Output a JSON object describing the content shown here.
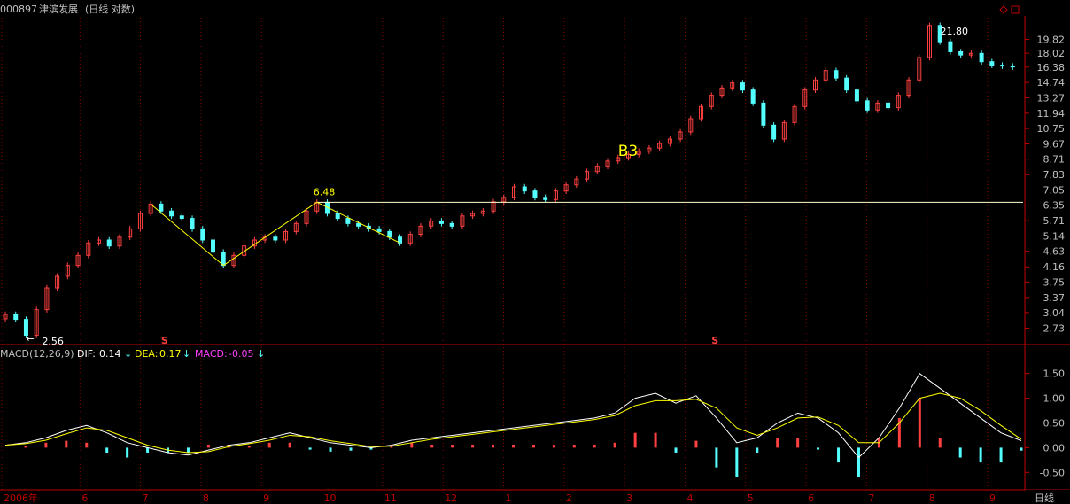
{
  "header": {
    "code": "000897",
    "name": "津滨发展",
    "period_label": "(日线 对数)"
  },
  "colors": {
    "up": "#ff4040",
    "down": "#54ffff",
    "axis": "#c00000",
    "grid": "#8b0000",
    "text": "#c0c0c0",
    "dif_line": "#ffffff",
    "dea_line": "#ffff00",
    "macd_label": "#ff40ff"
  },
  "chart_data": [
    {
      "type": "candlestick",
      "scale": "log",
      "ylim": [
        2.5,
        23.0
      ],
      "y_ticks": [
        "19.82",
        "18.02",
        "16.38",
        "14.74",
        "13.27",
        "11.94",
        "10.75",
        "9.67",
        "8.71",
        "7.83",
        "7.05",
        "6.35",
        "5.71",
        "5.14",
        "4.63",
        "4.16",
        "3.75",
        "3.37",
        "3.04",
        "2.73"
      ],
      "x_ticks": [
        "2006年",
        "6",
        "7",
        "8",
        "9",
        "10",
        "11",
        "12",
        "1",
        "2",
        "3",
        "4",
        "5",
        "6",
        "7",
        "8",
        "9"
      ],
      "series_approx_close": [
        3.0,
        2.9,
        2.6,
        3.1,
        3.6,
        3.9,
        4.2,
        4.5,
        4.9,
        5.0,
        4.8,
        5.1,
        5.4,
        6.0,
        6.4,
        6.1,
        5.9,
        5.8,
        5.4,
        5.0,
        4.6,
        4.2,
        4.5,
        4.8,
        5.0,
        5.1,
        5.0,
        5.3,
        5.6,
        6.1,
        6.48,
        6.0,
        5.8,
        5.6,
        5.5,
        5.4,
        5.3,
        5.1,
        4.9,
        5.2,
        5.5,
        5.7,
        5.6,
        5.5,
        5.9,
        6.0,
        6.1,
        6.5,
        6.7,
        7.2,
        7.0,
        6.7,
        6.6,
        7.0,
        7.3,
        7.6,
        8.0,
        8.3,
        8.6,
        8.8,
        9.0,
        9.2,
        9.4,
        9.7,
        10.0,
        10.5,
        11.5,
        12.5,
        13.5,
        14.2,
        14.7,
        14.0,
        12.8,
        11.0,
        10.0,
        11.2,
        12.5,
        14.0,
        15.0,
        16.0,
        15.2,
        14.0,
        13.0,
        12.2,
        12.8,
        12.4,
        13.5,
        15.0,
        17.5,
        21.8,
        19.5,
        18.2,
        17.8,
        18.0,
        17.0,
        16.6,
        16.5,
        16.4
      ],
      "annotations": [
        {
          "text": "2.56",
          "value": 2.56
        },
        {
          "text": "6.48",
          "value": 6.48
        },
        {
          "text": "21.80",
          "value": 21.8
        },
        {
          "text": "B3"
        }
      ],
      "horizontal_line_value": 6.48,
      "markers": [
        "S",
        "S"
      ]
    },
    {
      "type": "line",
      "title": "MACD(12,26,9)",
      "ylim": [
        -0.8,
        1.8
      ],
      "y_ticks": [
        "1.50",
        "1.00",
        "0.50",
        "0.00",
        "-0.50"
      ],
      "dif_label": "DIF:",
      "dif_value": "0.14",
      "dea_label": "DEA:",
      "dea_value": "0.17",
      "macd_label": "MACD:",
      "macd_value": "-0.05",
      "series": [
        {
          "name": "DIF",
          "values": [
            0.05,
            0.1,
            0.2,
            0.35,
            0.45,
            0.3,
            0.1,
            0.0,
            -0.1,
            -0.15,
            -0.05,
            0.05,
            0.1,
            0.2,
            0.3,
            0.2,
            0.1,
            0.05,
            0.0,
            0.05,
            0.15,
            0.2,
            0.25,
            0.3,
            0.35,
            0.4,
            0.45,
            0.5,
            0.55,
            0.6,
            0.7,
            1.0,
            1.1,
            0.9,
            1.05,
            0.6,
            0.1,
            0.2,
            0.5,
            0.7,
            0.6,
            0.3,
            -0.2,
            0.2,
            0.8,
            1.5,
            1.2,
            0.9,
            0.6,
            0.3,
            0.14
          ]
        },
        {
          "name": "DEA",
          "values": [
            0.05,
            0.08,
            0.15,
            0.28,
            0.4,
            0.35,
            0.2,
            0.05,
            -0.05,
            -0.1,
            -0.08,
            0.02,
            0.08,
            0.15,
            0.25,
            0.22,
            0.14,
            0.08,
            0.02,
            0.03,
            0.1,
            0.17,
            0.22,
            0.27,
            0.32,
            0.37,
            0.42,
            0.47,
            0.52,
            0.57,
            0.65,
            0.85,
            0.95,
            0.95,
            0.98,
            0.8,
            0.4,
            0.25,
            0.4,
            0.6,
            0.62,
            0.45,
            0.1,
            0.1,
            0.5,
            1.0,
            1.1,
            1.0,
            0.75,
            0.45,
            0.17
          ]
        }
      ]
    }
  ],
  "footer": {
    "period_button": "日线"
  }
}
